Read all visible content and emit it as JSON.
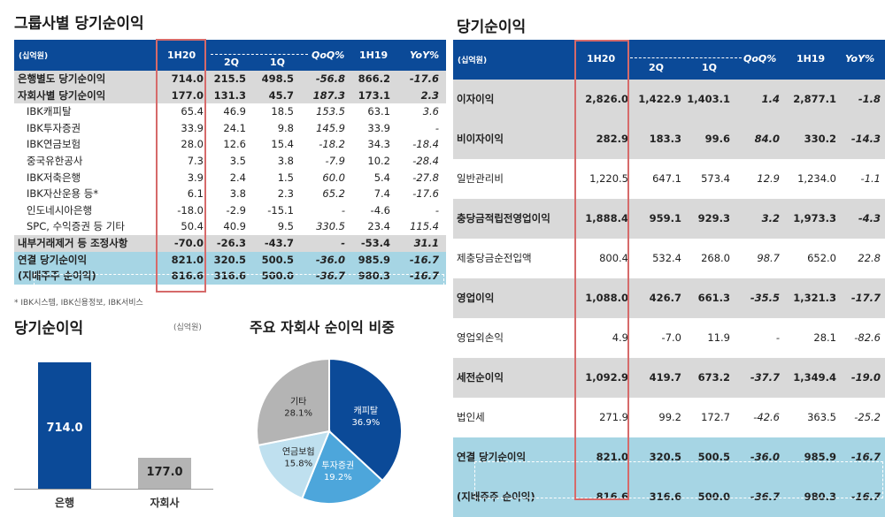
{
  "left": {
    "title": "그룹사별 당기순이익",
    "unit": "(십억원)",
    "header": {
      "unit": "(십억원)",
      "h1": "1H20",
      "q2": "2Q",
      "q1": "1Q",
      "qoq": "QoQ%",
      "h19": "1H19",
      "yoy": "YoY%"
    },
    "rows": [
      {
        "name": "은행별도 당기순이익",
        "h1": "714.0",
        "q2": "215.5",
        "q1": "498.5",
        "qoq": "-56.8",
        "h19": "866.2",
        "yoy": "-17.6",
        "style": "gray"
      },
      {
        "name": "자회사별 당기순이익",
        "h1": "177.0",
        "q2": "131.3",
        "q1": "45.7",
        "qoq": "187.3",
        "h19": "173.1",
        "yoy": "2.3",
        "style": "gray"
      },
      {
        "name": "IBK캐피탈",
        "h1": "65.4",
        "q2": "46.9",
        "q1": "18.5",
        "qoq": "153.5",
        "h19": "63.1",
        "yoy": "3.6",
        "style": "sub"
      },
      {
        "name": "IBK투자증권",
        "h1": "33.9",
        "q2": "24.1",
        "q1": "9.8",
        "qoq": "145.9",
        "h19": "33.9",
        "yoy": "-",
        "style": "sub"
      },
      {
        "name": "IBK연금보험",
        "h1": "28.0",
        "q2": "12.6",
        "q1": "15.4",
        "qoq": "-18.2",
        "h19": "34.3",
        "yoy": "-18.4",
        "style": "sub"
      },
      {
        "name": "중국유한공사",
        "h1": "7.3",
        "q2": "3.5",
        "q1": "3.8",
        "qoq": "-7.9",
        "h19": "10.2",
        "yoy": "-28.4",
        "style": "sub"
      },
      {
        "name": "IBK저축은행",
        "h1": "3.9",
        "q2": "2.4",
        "q1": "1.5",
        "qoq": "60.0",
        "h19": "5.4",
        "yoy": "-27.8",
        "style": "sub"
      },
      {
        "name": "IBK자산운용 등*",
        "h1": "6.1",
        "q2": "3.8",
        "q1": "2.3",
        "qoq": "65.2",
        "h19": "7.4",
        "yoy": "-17.6",
        "style": "sub"
      },
      {
        "name": "인도네시아은행",
        "h1": "-18.0",
        "q2": "-2.9",
        "q1": "-15.1",
        "qoq": "-",
        "h19": "-4.6",
        "yoy": "-",
        "style": "sub"
      },
      {
        "name": "SPC, 수익증권 등 기타",
        "h1": "50.4",
        "q2": "40.9",
        "q1": "9.5",
        "qoq": "330.5",
        "h19": "23.4",
        "yoy": "115.4",
        "style": "sub"
      },
      {
        "name": "내부거래제거 등 조정사항",
        "h1": "-70.0",
        "q2": "-26.3",
        "q1": "-43.7",
        "qoq": "-",
        "h19": "-53.4",
        "yoy": "31.1",
        "style": "gray"
      },
      {
        "name": "연결 당기순이익",
        "h1": "821.0",
        "q2": "320.5",
        "q1": "500.5",
        "qoq": "-36.0",
        "h19": "985.9",
        "yoy": "-16.7",
        "style": "teal"
      },
      {
        "name": "(지배주주 순이익)",
        "h1": "816.6",
        "q2": "316.6",
        "q1": "500.0",
        "qoq": "-36.7",
        "h19": "980.3",
        "yoy": "-16.7",
        "style": "teal"
      }
    ],
    "footnote": "* IBK시스템, IBK신용정보, IBK서비스"
  },
  "right": {
    "title": "당기순이익",
    "header": {
      "unit": "(십억원)",
      "h1": "1H20",
      "q2": "2Q",
      "q1": "1Q",
      "qoq": "QoQ%",
      "h19": "1H19",
      "yoy": "YoY%"
    },
    "rows": [
      {
        "name": "이자이익",
        "h1": "2,826.0",
        "q2": "1,422.9",
        "q1": "1,403.1",
        "qoq": "1.4",
        "h19": "2,877.1",
        "yoy": "-1.8",
        "style": "gray"
      },
      {
        "name": "비이자이익",
        "h1": "282.9",
        "q2": "183.3",
        "q1": "99.6",
        "qoq": "84.0",
        "h19": "330.2",
        "yoy": "-14.3",
        "style": "gray"
      },
      {
        "name": "일반관리비",
        "h1": "1,220.5",
        "q2": "647.1",
        "q1": "573.4",
        "qoq": "12.9",
        "h19": "1,234.0",
        "yoy": "-1.1",
        "style": "white"
      },
      {
        "name": "충당금적립전영업이익",
        "h1": "1,888.4",
        "q2": "959.1",
        "q1": "929.3",
        "qoq": "3.2",
        "h19": "1,973.3",
        "yoy": "-4.3",
        "style": "gray"
      },
      {
        "name": "제충당금순전입액",
        "h1": "800.4",
        "q2": "532.4",
        "q1": "268.0",
        "qoq": "98.7",
        "h19": "652.0",
        "yoy": "22.8",
        "style": "white"
      },
      {
        "name": "영업이익",
        "h1": "1,088.0",
        "q2": "426.7",
        "q1": "661.3",
        "qoq": "-35.5",
        "h19": "1,321.3",
        "yoy": "-17.7",
        "style": "gray"
      },
      {
        "name": "영업외손익",
        "h1": "4.9",
        "q2": "-7.0",
        "q1": "11.9",
        "qoq": "-",
        "h19": "28.1",
        "yoy": "-82.6",
        "style": "white"
      },
      {
        "name": "세전순이익",
        "h1": "1,092.9",
        "q2": "419.7",
        "q1": "673.2",
        "qoq": "-37.7",
        "h19": "1,349.4",
        "yoy": "-19.0",
        "style": "gray"
      },
      {
        "name": "법인세",
        "h1": "271.9",
        "q2": "99.2",
        "q1": "172.7",
        "qoq": "-42.6",
        "h19": "363.5",
        "yoy": "-25.2",
        "style": "white"
      },
      {
        "name": "연결 당기순이익",
        "h1": "821.0",
        "q2": "320.5",
        "q1": "500.5",
        "qoq": "-36.0",
        "h19": "985.9",
        "yoy": "-16.7",
        "style": "teal"
      },
      {
        "name": "(지배주주 순이익)",
        "h1": "816.6",
        "q2": "316.6",
        "q1": "500.0",
        "qoq": "-36.7",
        "h19": "980.3",
        "yoy": "-16.7",
        "style": "teal"
      }
    ]
  },
  "chart_data": [
    {
      "type": "bar",
      "title": "당기순이익",
      "unit": "(십억원)",
      "categories": [
        "은행",
        "자회사"
      ],
      "values": [
        714.0,
        177.0
      ],
      "value_labels": [
        "714.0",
        "177.0"
      ],
      "colors": [
        "#0b4a98",
        "#b4b4b4"
      ]
    },
    {
      "type": "pie",
      "title": "주요 자회사 순이익 비중",
      "slices": [
        {
          "label": "캐피탈",
          "value": 36.9,
          "value_label": "36.9%",
          "color": "#0b4a98"
        },
        {
          "label": "투자증권",
          "value": 19.2,
          "value_label": "19.2%",
          "color": "#4da6db"
        },
        {
          "label": "연금보험",
          "value": 15.8,
          "value_label": "15.8%",
          "color": "#bfe0ef"
        },
        {
          "label": "기타",
          "value": 28.1,
          "value_label": "28.1%",
          "color": "#b4b4b4"
        }
      ]
    }
  ]
}
